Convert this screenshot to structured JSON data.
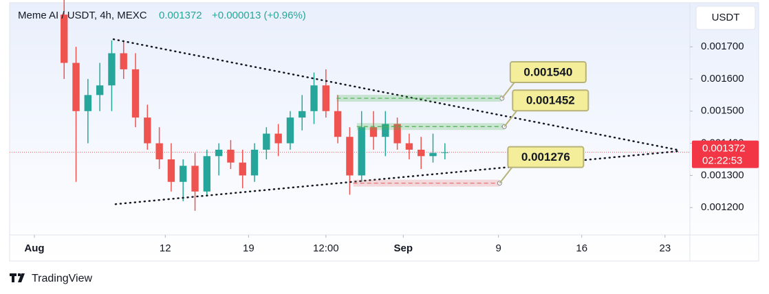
{
  "chart_data": {
    "type": "candlestick",
    "title": "Meme AI / USDT, 4h, MEXC",
    "price": "0.001372",
    "change": "+0.000013 (+0.96%)",
    "currency": "USDT",
    "brand": "TradingView",
    "countdown": "02:22:53",
    "last_price": {
      "value": 0.001372,
      "label": "0.001372"
    },
    "up_color": "#26a69a",
    "down_color": "#ef5350",
    "x": [
      3.5,
      4.5,
      5.5,
      6.5,
      7.5,
      8.5,
      9.5,
      10.5,
      11.5,
      12.5,
      13.5,
      14.5,
      15.5,
      16.5,
      17.5,
      18.5,
      19.5,
      20.5,
      21.5,
      22.5,
      23.5,
      24.5,
      25.5,
      26.5,
      27.5,
      28.5,
      29.5,
      30.5,
      31.5,
      32.5,
      33.5,
      34.5,
      35.5
    ],
    "open": [
      0.0018,
      0.00165,
      0.0015,
      0.00155,
      0.00158,
      0.00168,
      0.00163,
      0.00148,
      0.0014,
      0.00135,
      0.00128,
      0.00133,
      0.00125,
      0.00136,
      0.00138,
      0.00134,
      0.0013,
      0.00138,
      0.00143,
      0.0014,
      0.00148,
      0.0015,
      0.00158,
      0.0015,
      0.00142,
      0.0013,
      0.00145,
      0.00142,
      0.00146,
      0.0014,
      0.00138,
      0.00136,
      0.00137
    ],
    "high": [
      0.00185,
      0.0017,
      0.0016,
      0.00165,
      0.00172,
      0.00172,
      0.00168,
      0.00152,
      0.00145,
      0.0014,
      0.00135,
      0.00137,
      0.00138,
      0.0014,
      0.00141,
      0.00138,
      0.0014,
      0.00145,
      0.00146,
      0.0015,
      0.00155,
      0.00162,
      0.00163,
      0.00155,
      0.00145,
      0.0015,
      0.0015,
      0.0015,
      0.00148,
      0.00143,
      0.00142,
      0.00143,
      0.0014
    ],
    "low": [
      0.0016,
      0.00128,
      0.0014,
      0.0015,
      0.0015,
      0.0016,
      0.00145,
      0.00138,
      0.00132,
      0.00125,
      0.00122,
      0.00119,
      0.00124,
      0.0013,
      0.00132,
      0.00126,
      0.00128,
      0.00135,
      0.00136,
      0.00138,
      0.00144,
      0.00146,
      0.00148,
      0.0014,
      0.00124,
      0.00128,
      0.00138,
      0.00136,
      0.00138,
      0.00135,
      0.00132,
      0.00134,
      0.00135
    ],
    "close": [
      0.00165,
      0.0015,
      0.00155,
      0.00158,
      0.00168,
      0.00163,
      0.00148,
      0.0014,
      0.00135,
      0.00128,
      0.00133,
      0.00125,
      0.00136,
      0.00138,
      0.00134,
      0.0013,
      0.00138,
      0.00143,
      0.0014,
      0.00148,
      0.0015,
      0.00158,
      0.0015,
      0.00142,
      0.0013,
      0.00145,
      0.00142,
      0.00146,
      0.0014,
      0.00138,
      0.00136,
      0.00137,
      0.001372
    ],
    "xlim": [
      -1.08,
      56.09
    ],
    "ylim": [
      0.001115,
      0.001837
    ],
    "xticks": [
      {
        "value": 1,
        "label": "Aug"
      },
      12,
      19,
      {
        "value": 25.5,
        "label": "12:00"
      },
      {
        "value": 32,
        "label": "Sep"
      },
      {
        "value": 40,
        "label": "9"
      },
      {
        "value": 47,
        "label": "16"
      },
      {
        "value": 54,
        "label": "23"
      }
    ],
    "yticks": [
      {
        "value": 0.0012,
        "label": "0.001200"
      },
      {
        "value": 0.0013,
        "label": "0.001300"
      },
      {
        "value": 0.0014,
        "label": "0.001400"
      },
      {
        "value": 0.0015,
        "label": "0.001500"
      },
      {
        "value": 0.0016,
        "label": "0.001600"
      },
      {
        "value": 0.0017,
        "label": "0.001700"
      }
    ],
    "trendlines": [
      {
        "x": [
          7.65,
          55.05
        ],
        "y": [
          0.0017235,
          0.0013795
        ]
      },
      {
        "x": [
          7.82,
          55.05
        ],
        "y": [
          0.0012107,
          0.0013752
        ]
      }
    ],
    "levels": [
      {
        "value": 0.00154,
        "label": "0.001540",
        "color": "#4caf50",
        "x": [
          26.4,
          40.3
        ]
      },
      {
        "value": 0.001452,
        "label": "0.001452",
        "color": "#4caf50",
        "x": [
          28.1,
          40.5
        ]
      },
      {
        "value": 0.001276,
        "label": "0.001276",
        "color": "#e57373",
        "x": [
          27.8,
          40.1
        ]
      }
    ]
  }
}
